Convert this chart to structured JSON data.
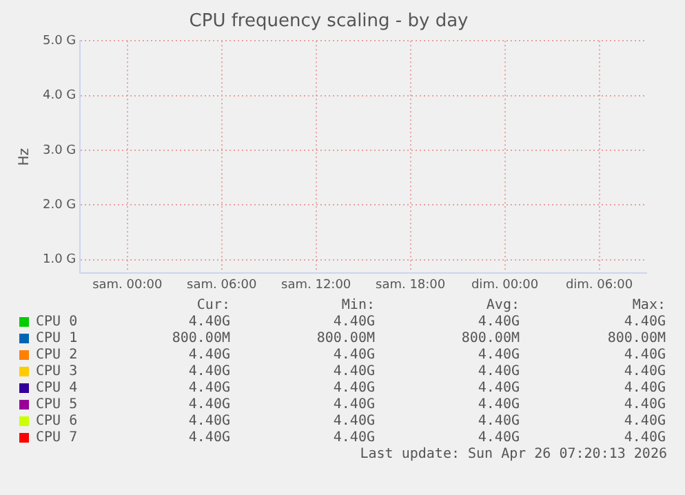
{
  "chart_data": {
    "type": "line",
    "title": "CPU frequency scaling - by day",
    "ylabel": "Hz",
    "categories": [
      "sam. 00:00",
      "sam. 06:00",
      "sam. 12:00",
      "sam. 18:00",
      "dim. 00:00",
      "dim. 06:00"
    ],
    "ylim": [
      0.75,
      5.0
    ],
    "yticks": [
      {
        "value": 1,
        "label": "1.0 G"
      },
      {
        "value": 2,
        "label": "2.0 G"
      },
      {
        "value": 3,
        "label": "3.0 G"
      },
      {
        "value": 4,
        "label": "4.0 G"
      },
      {
        "value": 5,
        "label": "5.0 G"
      }
    ],
    "grid": true,
    "legend": "bottom",
    "series": [
      {
        "name": "CPU 0",
        "color": "#00cc00",
        "values": [
          null,
          null,
          null,
          null,
          null,
          null
        ]
      },
      {
        "name": "CPU 1",
        "color": "#0066b3",
        "values": [
          null,
          null,
          null,
          null,
          null,
          null
        ]
      },
      {
        "name": "CPU 2",
        "color": "#ff8000",
        "values": [
          null,
          null,
          null,
          null,
          null,
          null
        ]
      },
      {
        "name": "CPU 3",
        "color": "#ffcc00",
        "values": [
          null,
          null,
          null,
          null,
          null,
          null
        ]
      },
      {
        "name": "CPU 4",
        "color": "#330099",
        "values": [
          null,
          null,
          null,
          null,
          null,
          null
        ]
      },
      {
        "name": "CPU 5",
        "color": "#990099",
        "values": [
          null,
          null,
          null,
          null,
          null,
          null
        ]
      },
      {
        "name": "CPU 6",
        "color": "#ccff00",
        "values": [
          null,
          null,
          null,
          null,
          null,
          null
        ]
      },
      {
        "name": "CPU 7",
        "color": "#ff0000",
        "values": [
          null,
          null,
          null,
          null,
          null,
          null
        ]
      }
    ],
    "annotations": [
      "Cur:",
      "Min:",
      "Avg:",
      "Max:",
      "4.40G",
      "4.40G",
      "4.40G",
      "4.40G",
      "800.00M",
      "800.00M",
      "800.00M",
      "800.00M",
      "4.40G",
      "4.40G",
      "4.40G",
      "4.40G",
      "4.40G",
      "4.40G",
      "4.40G",
      "4.40G",
      "4.40G",
      "4.40G",
      "4.40G",
      "4.40G",
      "4.40G",
      "4.40G",
      "4.40G",
      "4.40G",
      "4.40G",
      "4.40G",
      "4.40G",
      "4.40G",
      "4.40G",
      "4.40G",
      "4.40G",
      "4.40G",
      "Last update: Sun Apr 26 07:20:13 2026"
    ]
  }
}
